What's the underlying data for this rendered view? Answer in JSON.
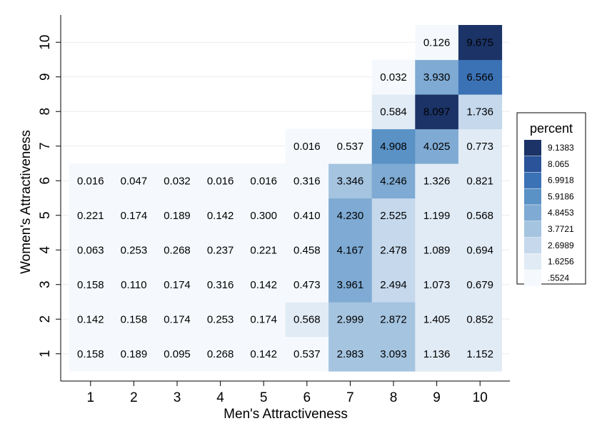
{
  "chart_data": {
    "type": "heatmap",
    "xlabel": "Men's Attractiveness",
    "ylabel": "Women's Attractiveness",
    "x_categories": [
      "1",
      "2",
      "3",
      "4",
      "5",
      "6",
      "7",
      "8",
      "9",
      "10"
    ],
    "y_categories": [
      "1",
      "2",
      "3",
      "4",
      "5",
      "6",
      "7",
      "8",
      "9",
      "10"
    ],
    "grid": "horizontal",
    "legend": {
      "title": "percent",
      "placement": "right",
      "breaks": [
        "9.1383",
        "8.065",
        "6.9918",
        "5.9186",
        "4.8453",
        "3.7721",
        "2.6989",
        "1.6256",
        ".5524"
      ],
      "colors": [
        "#1b3366",
        "#2a5399",
        "#3b72b5",
        "#5a92c6",
        "#7eaad3",
        "#a5c4e0",
        "#c5d8ec",
        "#e1ebf5",
        "#f5f9fd"
      ]
    },
    "cells": [
      {
        "x": 1,
        "y": 1,
        "v": "0.158"
      },
      {
        "x": 2,
        "y": 1,
        "v": "0.189"
      },
      {
        "x": 3,
        "y": 1,
        "v": "0.095"
      },
      {
        "x": 4,
        "y": 1,
        "v": "0.268"
      },
      {
        "x": 5,
        "y": 1,
        "v": "0.142"
      },
      {
        "x": 6,
        "y": 1,
        "v": "0.537"
      },
      {
        "x": 7,
        "y": 1,
        "v": "2.983"
      },
      {
        "x": 8,
        "y": 1,
        "v": "3.093"
      },
      {
        "x": 9,
        "y": 1,
        "v": "1.136"
      },
      {
        "x": 10,
        "y": 1,
        "v": "1.152"
      },
      {
        "x": 1,
        "y": 2,
        "v": "0.142"
      },
      {
        "x": 2,
        "y": 2,
        "v": "0.158"
      },
      {
        "x": 3,
        "y": 2,
        "v": "0.174"
      },
      {
        "x": 4,
        "y": 2,
        "v": "0.253"
      },
      {
        "x": 5,
        "y": 2,
        "v": "0.174"
      },
      {
        "x": 6,
        "y": 2,
        "v": "0.568"
      },
      {
        "x": 7,
        "y": 2,
        "v": "2.999"
      },
      {
        "x": 8,
        "y": 2,
        "v": "2.872"
      },
      {
        "x": 9,
        "y": 2,
        "v": "1.405"
      },
      {
        "x": 10,
        "y": 2,
        "v": "0.852"
      },
      {
        "x": 1,
        "y": 3,
        "v": "0.158"
      },
      {
        "x": 2,
        "y": 3,
        "v": "0.110"
      },
      {
        "x": 3,
        "y": 3,
        "v": "0.174"
      },
      {
        "x": 4,
        "y": 3,
        "v": "0.316"
      },
      {
        "x": 5,
        "y": 3,
        "v": "0.142"
      },
      {
        "x": 6,
        "y": 3,
        "v": "0.473"
      },
      {
        "x": 7,
        "y": 3,
        "v": "3.961"
      },
      {
        "x": 8,
        "y": 3,
        "v": "2.494"
      },
      {
        "x": 9,
        "y": 3,
        "v": "1.073"
      },
      {
        "x": 10,
        "y": 3,
        "v": "0.679"
      },
      {
        "x": 1,
        "y": 4,
        "v": "0.063"
      },
      {
        "x": 2,
        "y": 4,
        "v": "0.253"
      },
      {
        "x": 3,
        "y": 4,
        "v": "0.268"
      },
      {
        "x": 4,
        "y": 4,
        "v": "0.237"
      },
      {
        "x": 5,
        "y": 4,
        "v": "0.221"
      },
      {
        "x": 6,
        "y": 4,
        "v": "0.458"
      },
      {
        "x": 7,
        "y": 4,
        "v": "4.167"
      },
      {
        "x": 8,
        "y": 4,
        "v": "2.478"
      },
      {
        "x": 9,
        "y": 4,
        "v": "1.089"
      },
      {
        "x": 10,
        "y": 4,
        "v": "0.694"
      },
      {
        "x": 1,
        "y": 5,
        "v": "0.221"
      },
      {
        "x": 2,
        "y": 5,
        "v": "0.174"
      },
      {
        "x": 3,
        "y": 5,
        "v": "0.189"
      },
      {
        "x": 4,
        "y": 5,
        "v": "0.142"
      },
      {
        "x": 5,
        "y": 5,
        "v": "0.300"
      },
      {
        "x": 6,
        "y": 5,
        "v": "0.410"
      },
      {
        "x": 7,
        "y": 5,
        "v": "4.230"
      },
      {
        "x": 8,
        "y": 5,
        "v": "2.525"
      },
      {
        "x": 9,
        "y": 5,
        "v": "1.199"
      },
      {
        "x": 10,
        "y": 5,
        "v": "0.568"
      },
      {
        "x": 1,
        "y": 6,
        "v": "0.016"
      },
      {
        "x": 2,
        "y": 6,
        "v": "0.047"
      },
      {
        "x": 3,
        "y": 6,
        "v": "0.032"
      },
      {
        "x": 4,
        "y": 6,
        "v": "0.016"
      },
      {
        "x": 5,
        "y": 6,
        "v": "0.016"
      },
      {
        "x": 6,
        "y": 6,
        "v": "0.316"
      },
      {
        "x": 7,
        "y": 6,
        "v": "3.346"
      },
      {
        "x": 8,
        "y": 6,
        "v": "4.246"
      },
      {
        "x": 9,
        "y": 6,
        "v": "1.326"
      },
      {
        "x": 10,
        "y": 6,
        "v": "0.821"
      },
      {
        "x": 6,
        "y": 7,
        "v": "0.016"
      },
      {
        "x": 7,
        "y": 7,
        "v": "0.537"
      },
      {
        "x": 8,
        "y": 7,
        "v": "4.908"
      },
      {
        "x": 9,
        "y": 7,
        "v": "4.025"
      },
      {
        "x": 10,
        "y": 7,
        "v": "0.773"
      },
      {
        "x": 8,
        "y": 8,
        "v": "0.584"
      },
      {
        "x": 9,
        "y": 8,
        "v": "8.097"
      },
      {
        "x": 10,
        "y": 8,
        "v": "1.736"
      },
      {
        "x": 8,
        "y": 9,
        "v": "0.032"
      },
      {
        "x": 9,
        "y": 9,
        "v": "3.930"
      },
      {
        "x": 10,
        "y": 9,
        "v": "6.566"
      },
      {
        "x": 9,
        "y": 10,
        "v": "0.126"
      },
      {
        "x": 10,
        "y": 10,
        "v": "9.675"
      }
    ]
  }
}
